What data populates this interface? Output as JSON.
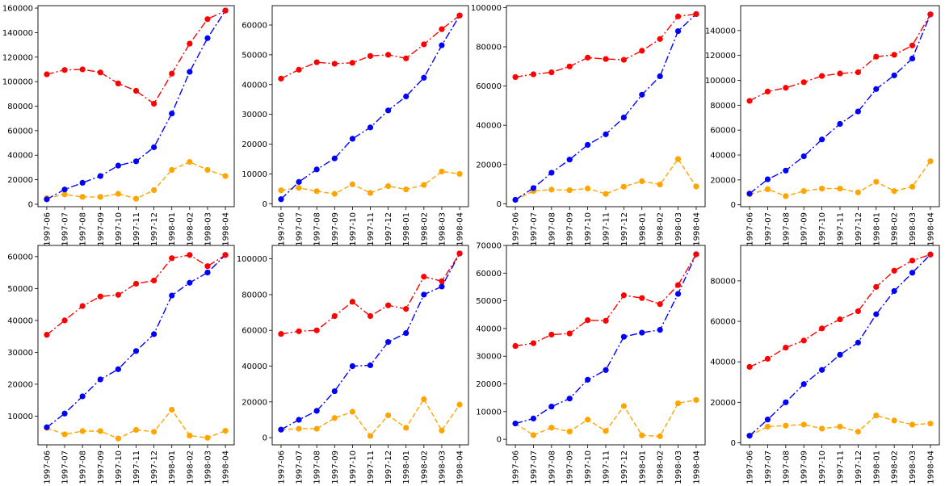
{
  "chart_data": [
    {
      "type": "line",
      "x": [
        "1997-06",
        "1997-07",
        "1997-08",
        "1997-09",
        "1997-10",
        "1997-11",
        "1997-12",
        "1998-01",
        "1998-02",
        "1998-03",
        "1998-04"
      ],
      "ylim": [
        -2000,
        162000
      ],
      "yticks": [
        0,
        20000,
        40000,
        60000,
        80000,
        100000,
        120000,
        140000,
        160000
      ],
      "series": [
        {
          "color": "#ff0000",
          "style": "dashdot",
          "values": [
            106000,
            109500,
            110000,
            107500,
            98500,
            92500,
            82000,
            106500,
            131000,
            151000,
            158000
          ]
        },
        {
          "color": "#0000ff",
          "style": "dashdot",
          "values": [
            4000,
            12000,
            17500,
            23000,
            31500,
            35000,
            46500,
            74000,
            108000,
            135500,
            158000
          ]
        },
        {
          "color": "#ffa500",
          "style": "dashed",
          "values": [
            5000,
            8000,
            6000,
            6000,
            8500,
            4500,
            11500,
            28000,
            34500,
            28000,
            23000
          ]
        }
      ]
    },
    {
      "type": "line",
      "x": [
        "1997-06",
        "1997-07",
        "1997-08",
        "1997-09",
        "1997-10",
        "1997-11",
        "1997-12",
        "1998-01",
        "1998-02",
        "1998-03",
        "1998-04"
      ],
      "ylim": [
        -1000,
        66500
      ],
      "yticks": [
        0,
        10000,
        20000,
        30000,
        40000,
        50000,
        60000
      ],
      "series": [
        {
          "color": "#ff0000",
          "style": "dashdot",
          "values": [
            42000,
            45000,
            47500,
            47000,
            47300,
            49600,
            50000,
            48800,
            53500,
            58600,
            63200
          ]
        },
        {
          "color": "#0000ff",
          "style": "dashdot",
          "values": [
            1500,
            7300,
            11500,
            15200,
            21800,
            25600,
            31300,
            36000,
            42300,
            53200,
            63200
          ]
        },
        {
          "color": "#ffa500",
          "style": "dashed",
          "values": [
            4500,
            5300,
            4200,
            3300,
            6500,
            3600,
            5900,
            4800,
            6300,
            10800,
            10000
          ]
        }
      ]
    },
    {
      "type": "line",
      "x": [
        "1997-06",
        "1997-07",
        "1997-08",
        "1997-09",
        "1997-10",
        "1997-11",
        "1997-12",
        "1998-01",
        "1998-02",
        "1998-03",
        "1998-04"
      ],
      "ylim": [
        -1500,
        101000
      ],
      "yticks": [
        0,
        20000,
        40000,
        60000,
        80000,
        100000
      ],
      "series": [
        {
          "color": "#ff0000",
          "style": "dashdot",
          "values": [
            64600,
            66000,
            67000,
            70000,
            74500,
            73800,
            73400,
            78000,
            84000,
            95500,
            96700
          ]
        },
        {
          "color": "#0000ff",
          "style": "dashdot",
          "values": [
            2000,
            8000,
            15800,
            22500,
            30000,
            35400,
            44000,
            55600,
            65000,
            88000,
            96700
          ]
        },
        {
          "color": "#ffa500",
          "style": "dashed",
          "values": [
            2000,
            6500,
            7200,
            6900,
            7800,
            5000,
            8700,
            11500,
            9800,
            22800,
            8800
          ]
        }
      ]
    },
    {
      "type": "line",
      "x": [
        "1997-06",
        "1997-07",
        "1997-08",
        "1997-09",
        "1997-10",
        "1997-11",
        "1997-12",
        "1998-01",
        "1998-02",
        "1998-03",
        "1998-04"
      ],
      "ylim": [
        -1500,
        160000
      ],
      "yticks": [
        0,
        20000,
        40000,
        60000,
        80000,
        100000,
        120000,
        140000
      ],
      "series": [
        {
          "color": "#ff0000",
          "style": "dashdot",
          "values": [
            83500,
            91000,
            94000,
            98500,
            103500,
            105500,
            106500,
            119000,
            120500,
            128000,
            153000
          ]
        },
        {
          "color": "#0000ff",
          "style": "dashdot",
          "values": [
            9000,
            20500,
            27500,
            39000,
            52500,
            65000,
            75000,
            93000,
            104000,
            117500,
            153000
          ]
        },
        {
          "color": "#ffa500",
          "style": "dashed",
          "values": [
            8500,
            12500,
            7000,
            11000,
            13000,
            13000,
            10000,
            18500,
            11000,
            14500,
            35000
          ]
        }
      ]
    },
    {
      "type": "line",
      "x": [
        "1997-06",
        "1997-07",
        "1997-08",
        "1997-09",
        "1997-10",
        "1997-11",
        "1997-12",
        "1998-01",
        "1998-02",
        "1998-03",
        "1998-04"
      ],
      "ylim": [
        1000,
        63500
      ],
      "yticks": [
        10000,
        20000,
        30000,
        40000,
        50000,
        60000
      ],
      "series": [
        {
          "color": "#ff0000",
          "style": "dashdot",
          "values": [
            35500,
            40000,
            44500,
            47500,
            48000,
            51500,
            52500,
            59500,
            60500,
            57000,
            60500
          ]
        },
        {
          "color": "#0000ff",
          "style": "dashdot",
          "values": [
            6500,
            10800,
            16200,
            21500,
            24700,
            30400,
            35700,
            47800,
            51800,
            55000,
            60500
          ]
        },
        {
          "color": "#ffa500",
          "style": "dashed",
          "values": [
            6300,
            4300,
            5300,
            5300,
            3000,
            5700,
            5100,
            12000,
            3900,
            3200,
            5400
          ]
        }
      ]
    },
    {
      "type": "line",
      "x": [
        "1997-06",
        "1997-07",
        "1997-08",
        "1997-09",
        "1997-10",
        "1997-11",
        "1997-12",
        "1998-01",
        "1998-02",
        "1998-03",
        "1998-04"
      ],
      "ylim": [
        -4000,
        107500
      ],
      "yticks": [
        0,
        20000,
        40000,
        60000,
        80000,
        100000
      ],
      "series": [
        {
          "color": "#ff0000",
          "style": "dashdot",
          "values": [
            58000,
            59500,
            60000,
            68000,
            76000,
            68000,
            74000,
            72000,
            90000,
            87500,
            103000
          ]
        },
        {
          "color": "#0000ff",
          "style": "dashdot",
          "values": [
            4500,
            10000,
            15000,
            26000,
            40000,
            40500,
            53500,
            58500,
            80000,
            84500,
            103000
          ]
        },
        {
          "color": "#ffa500",
          "style": "dashed",
          "values": [
            4500,
            5000,
            5000,
            11000,
            14500,
            1000,
            12500,
            5500,
            21500,
            4000,
            18500
          ]
        }
      ]
    },
    {
      "type": "line",
      "x": [
        "1997-06",
        "1997-07",
        "1997-08",
        "1997-09",
        "1997-10",
        "1997-11",
        "1997-12",
        "1998-01",
        "1998-02",
        "1998-03",
        "1998-04"
      ],
      "ylim": [
        -2000,
        70000
      ],
      "yticks": [
        0,
        10000,
        20000,
        30000,
        40000,
        50000,
        60000,
        70000
      ],
      "series": [
        {
          "color": "#ff0000",
          "style": "dashdot",
          "values": [
            33700,
            34700,
            37800,
            38200,
            43000,
            42800,
            52000,
            51000,
            48800,
            55700,
            66800
          ]
        },
        {
          "color": "#0000ff",
          "style": "dashdot",
          "values": [
            5700,
            7500,
            11800,
            14700,
            21500,
            25000,
            37000,
            38500,
            39500,
            52500,
            66800
          ]
        },
        {
          "color": "#ffa500",
          "style": "dashed",
          "values": [
            5700,
            1500,
            4200,
            2800,
            7100,
            3000,
            12000,
            1400,
            1100,
            13000,
            14200
          ]
        }
      ]
    },
    {
      "type": "line",
      "x": [
        "1997-06",
        "1997-07",
        "1997-08",
        "1997-09",
        "1997-10",
        "1997-11",
        "1997-12",
        "1998-01",
        "1998-02",
        "1998-03",
        "1998-04"
      ],
      "ylim": [
        -1000,
        97500
      ],
      "yticks": [
        0,
        20000,
        40000,
        60000,
        80000
      ],
      "series": [
        {
          "color": "#ff0000",
          "style": "dashdot",
          "values": [
            37500,
            41500,
            47000,
            50500,
            56500,
            61000,
            65000,
            77000,
            85000,
            90000,
            93000
          ]
        },
        {
          "color": "#0000ff",
          "style": "dashdot",
          "values": [
            3500,
            11500,
            20000,
            29000,
            36000,
            43500,
            49500,
            63500,
            75000,
            84000,
            93000
          ]
        },
        {
          "color": "#ffa500",
          "style": "dashed",
          "values": [
            3500,
            8000,
            8500,
            9000,
            7000,
            8000,
            5500,
            13500,
            11000,
            9000,
            9500
          ]
        }
      ]
    }
  ]
}
